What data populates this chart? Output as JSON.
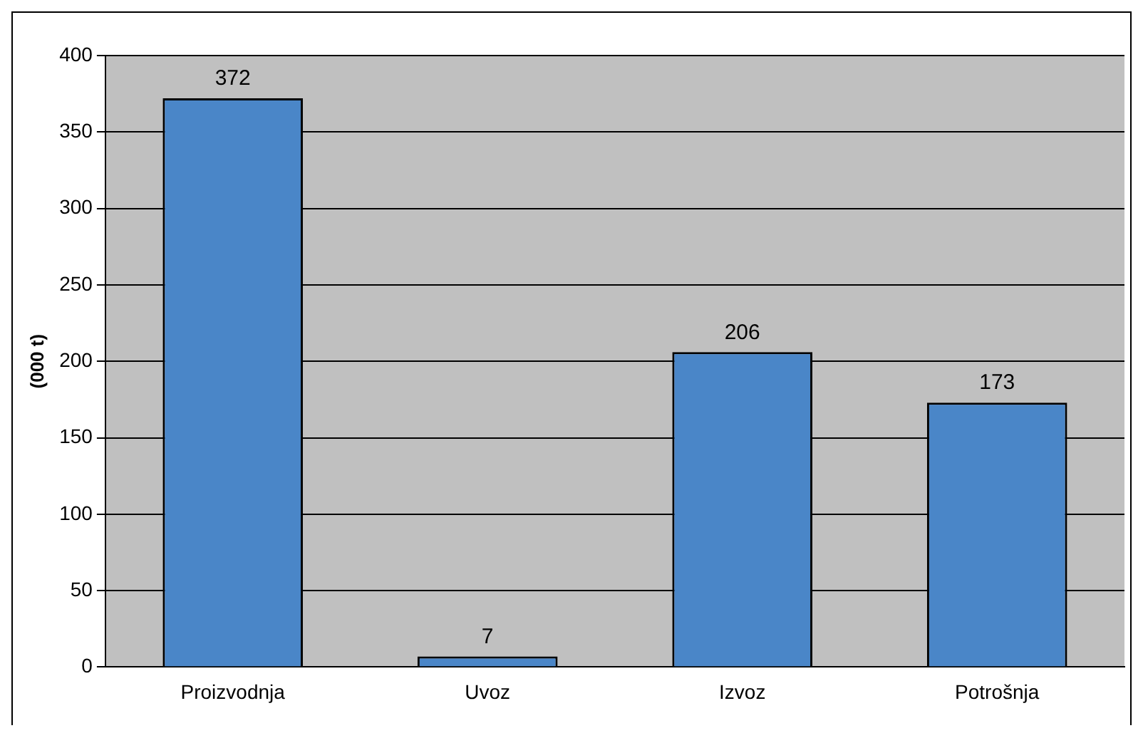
{
  "chart_data": {
    "type": "bar",
    "ylabel": "(000 t)",
    "categories": [
      "Proizvodnja",
      "Uvoz",
      "Izvoz",
      "Potrošnja"
    ],
    "values": [
      372,
      7,
      206,
      173
    ],
    "color": "#4a86c8",
    "ylim": [
      0,
      400
    ],
    "yticks": [
      0,
      50,
      100,
      150,
      200,
      250,
      300,
      350,
      400
    ],
    "grid": "y",
    "data_labels": true,
    "legend": false
  }
}
